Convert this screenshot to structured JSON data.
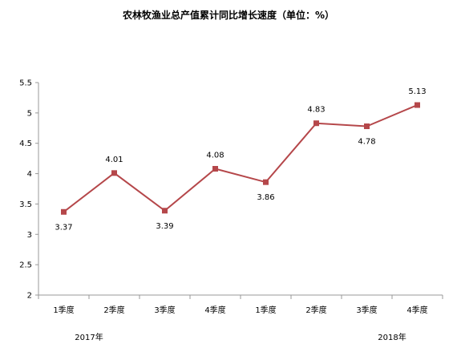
{
  "chart_data": {
    "type": "line",
    "title": "农林牧渔业总产值累计同比增长速度（单位：%）",
    "categories": [
      "1季度",
      "2季度",
      "3季度",
      "4季度",
      "1季度",
      "2季度",
      "3季度",
      "4季度"
    ],
    "groups": [
      {
        "label": "2017年",
        "start_index": 0,
        "count": 4
      },
      {
        "label": "2018年",
        "start_index": 4,
        "count": 4
      }
    ],
    "series": [
      {
        "values": [
          3.37,
          4.01,
          3.39,
          4.08,
          3.86,
          4.83,
          4.78,
          5.13
        ]
      }
    ],
    "data_labels": [
      "3.37",
      "4.01",
      "3.39",
      "4.08",
      "3.86",
      "4.83",
      "4.78",
      "5.13"
    ],
    "ylim": [
      2,
      5.5
    ],
    "y_ticks": [
      "2",
      "2.5",
      "3",
      "3.5",
      "4",
      "4.5",
      "5",
      "5.5"
    ],
    "grid": false,
    "line_color": "#B5474A",
    "marker_color": "#B5474A"
  }
}
